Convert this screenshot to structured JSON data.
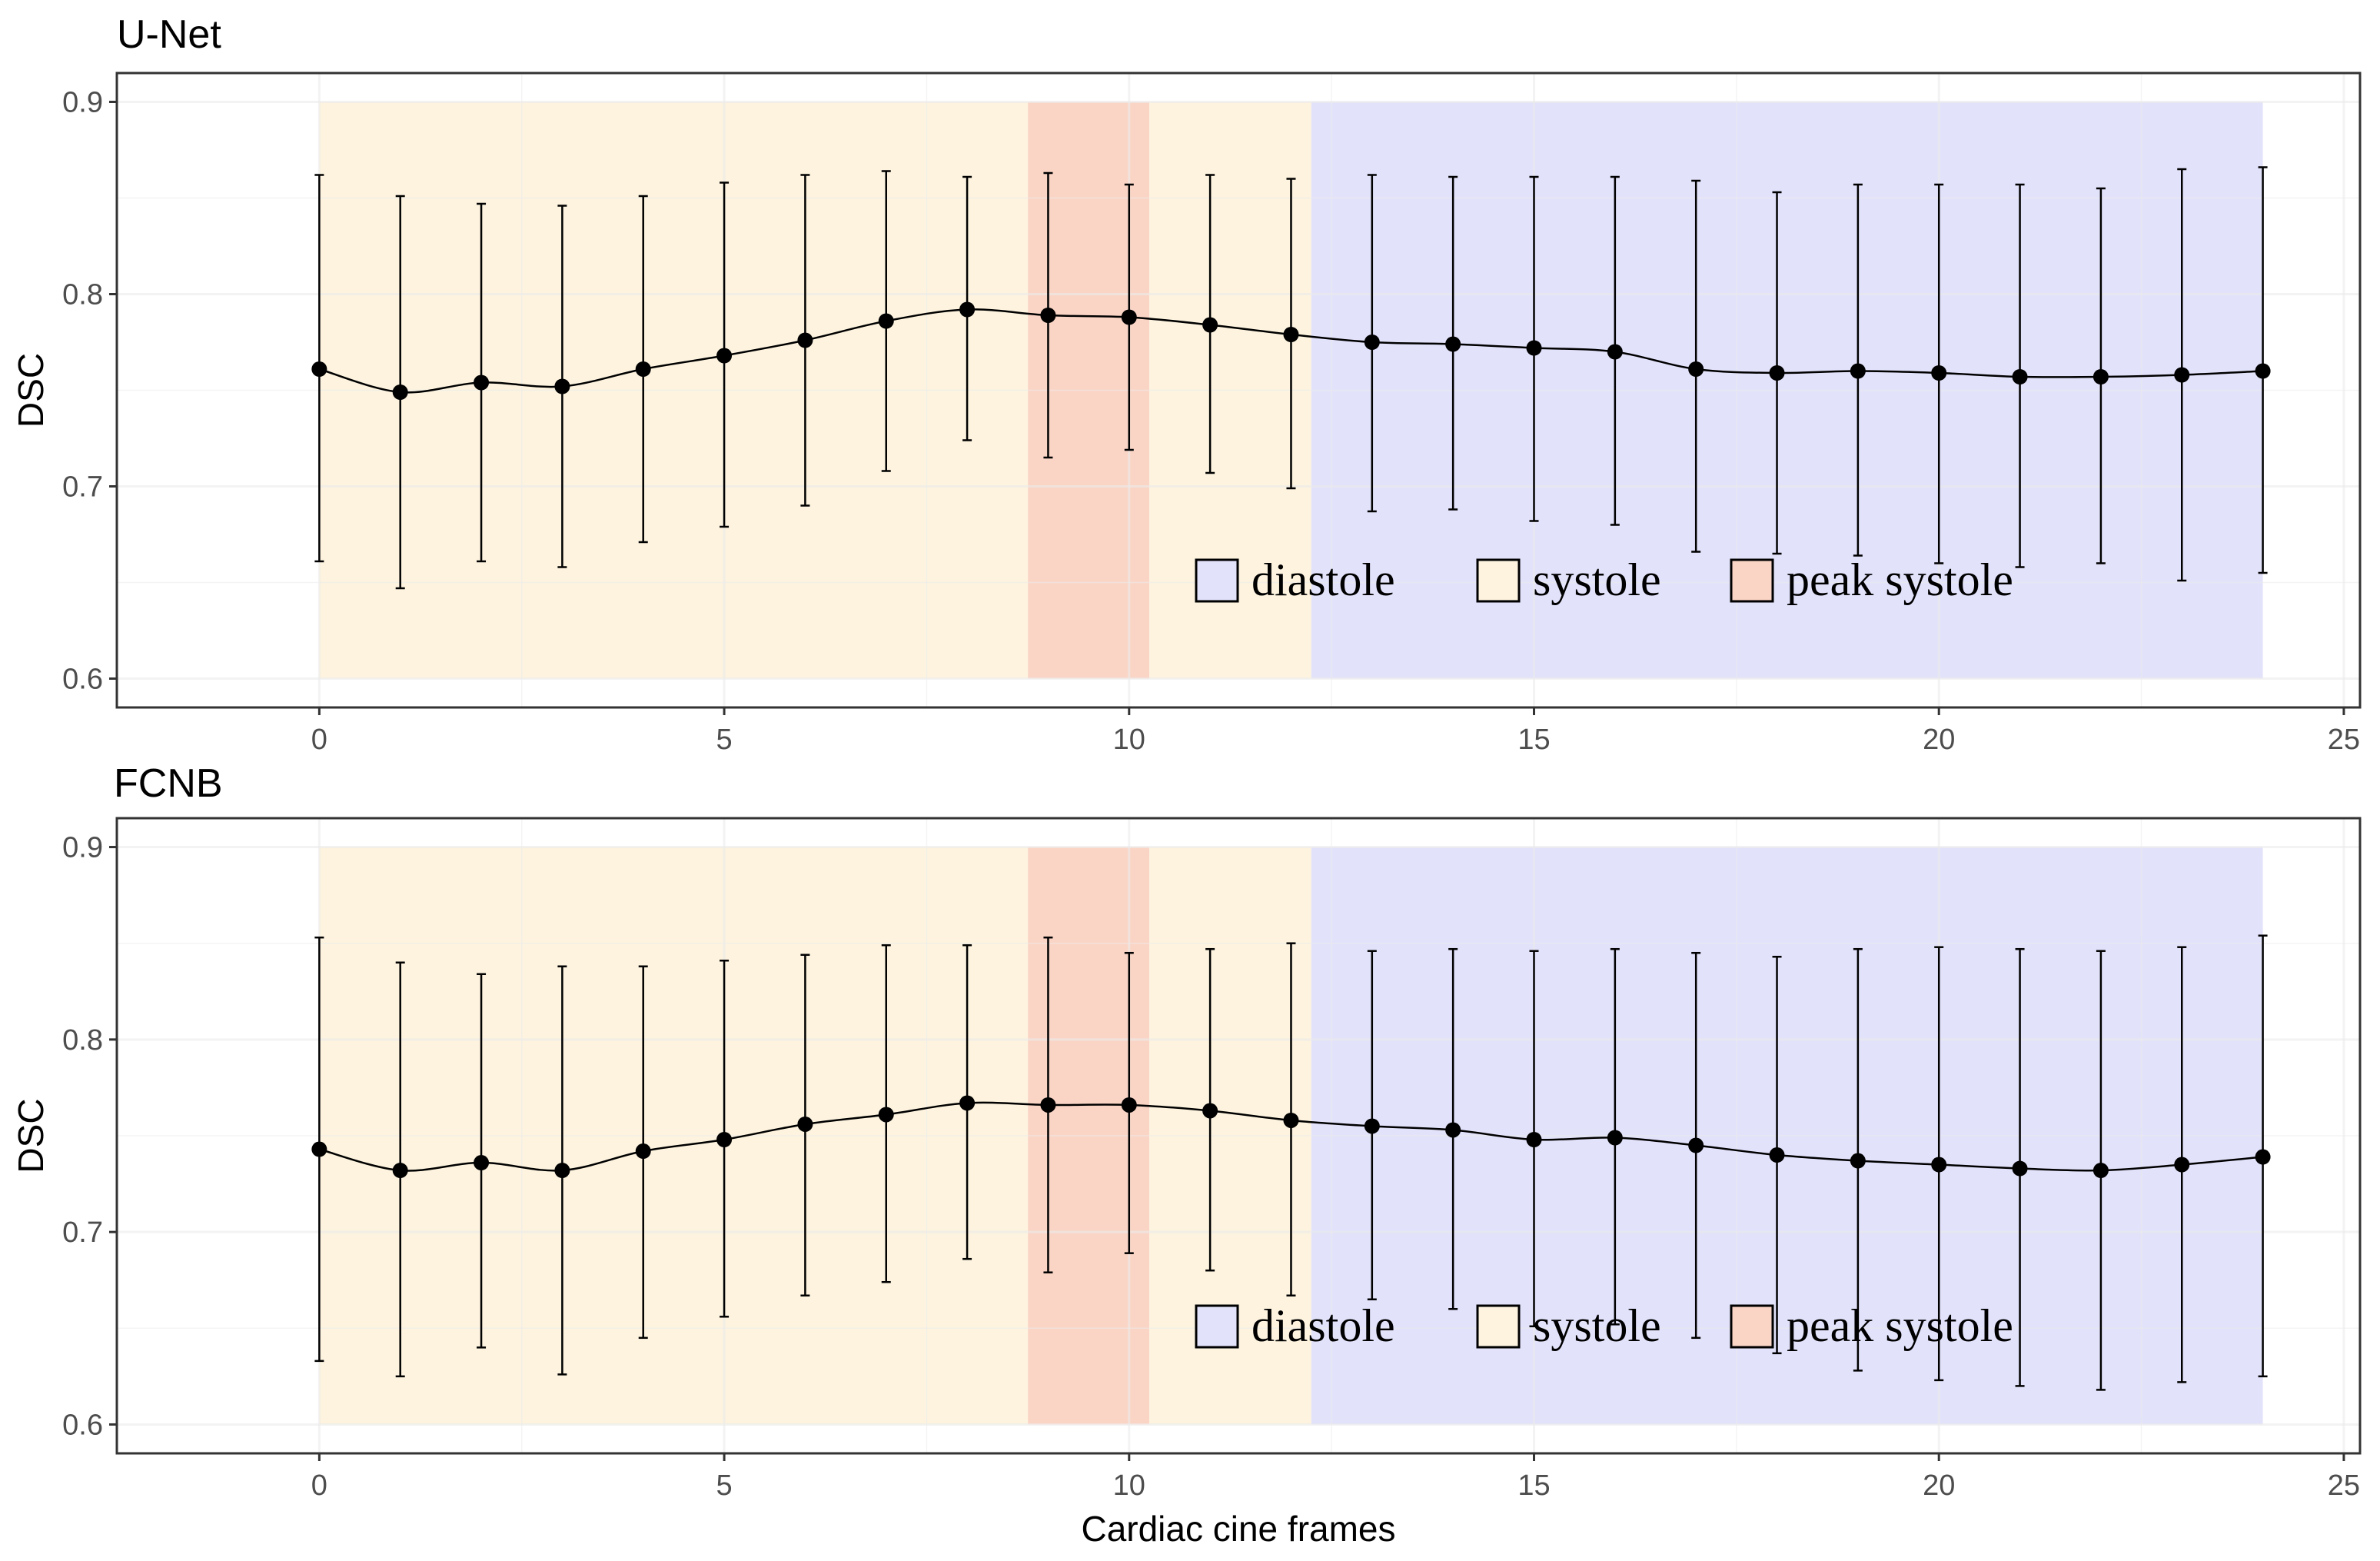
{
  "colors": {
    "diastole": "#e2e2fb",
    "systole": "#fdf3df",
    "peak_systole": "#fad5c6",
    "grid": "#ebebeb",
    "frame": "#333333",
    "line": "#000000"
  },
  "chart_data": [
    {
      "type": "line",
      "title": "U-Net",
      "xlabel": "",
      "ylabel": "DSC",
      "xlim": [
        -2.5,
        25.2
      ],
      "ylim": [
        0.585,
        0.915
      ],
      "x_ticks": [
        "0",
        "5",
        "10",
        "15",
        "20",
        "25"
      ],
      "x_tick_values": [
        0,
        5,
        10,
        15,
        20,
        25
      ],
      "y_ticks": [
        "0.6",
        "0.7",
        "0.8",
        "0.9"
      ],
      "y_tick_values": [
        0.6,
        0.7,
        0.8,
        0.9
      ],
      "grid": true,
      "phases": [
        {
          "name": "systole",
          "x_start": 0,
          "x_end": 8.75,
          "y_start": 0.6,
          "y_end": 0.9
        },
        {
          "name": "peak_systole",
          "x_start": 8.75,
          "x_end": 10.25,
          "y_start": 0.6,
          "y_end": 0.9
        },
        {
          "name": "systole",
          "x_start": 10.25,
          "x_end": 12.25,
          "y_start": 0.6,
          "y_end": 0.9
        },
        {
          "name": "diastole",
          "x_start": 12.25,
          "x_end": 24,
          "y_start": 0.6,
          "y_end": 0.9
        }
      ],
      "legend": {
        "placement": "bottom-right",
        "entries": [
          "diastole",
          "systole",
          "peak systole"
        ]
      },
      "x": [
        0,
        1,
        2,
        3,
        4,
        5,
        6,
        7,
        8,
        9,
        10,
        11,
        12,
        13,
        14,
        15,
        16,
        17,
        18,
        19,
        20,
        21,
        22,
        23,
        24
      ],
      "y": [
        0.761,
        0.749,
        0.754,
        0.752,
        0.761,
        0.768,
        0.776,
        0.786,
        0.792,
        0.789,
        0.788,
        0.784,
        0.779,
        0.775,
        0.774,
        0.772,
        0.77,
        0.761,
        0.759,
        0.76,
        0.759,
        0.757,
        0.757,
        0.758,
        0.76
      ],
      "err_lower": [
        0.661,
        0.647,
        0.661,
        0.658,
        0.671,
        0.679,
        0.69,
        0.708,
        0.724,
        0.715,
        0.719,
        0.707,
        0.699,
        0.687,
        0.688,
        0.682,
        0.68,
        0.666,
        0.665,
        0.664,
        0.66,
        0.658,
        0.66,
        0.651,
        0.655
      ],
      "err_upper": [
        0.862,
        0.851,
        0.847,
        0.846,
        0.851,
        0.858,
        0.862,
        0.864,
        0.861,
        0.863,
        0.857,
        0.862,
        0.86,
        0.862,
        0.861,
        0.861,
        0.861,
        0.859,
        0.853,
        0.857,
        0.857,
        0.857,
        0.855,
        0.865,
        0.866
      ]
    },
    {
      "type": "line",
      "title": "FCNB",
      "xlabel": "Cardiac cine frames",
      "ylabel": "DSC",
      "xlim": [
        -2.5,
        25.2
      ],
      "ylim": [
        0.585,
        0.915
      ],
      "x_ticks": [
        "0",
        "5",
        "10",
        "15",
        "20",
        "25"
      ],
      "x_tick_values": [
        0,
        5,
        10,
        15,
        20,
        25
      ],
      "y_ticks": [
        "0.6",
        "0.7",
        "0.8",
        "0.9"
      ],
      "y_tick_values": [
        0.6,
        0.7,
        0.8,
        0.9
      ],
      "grid": true,
      "phases": [
        {
          "name": "systole",
          "x_start": 0,
          "x_end": 8.75,
          "y_start": 0.6,
          "y_end": 0.9
        },
        {
          "name": "peak_systole",
          "x_start": 8.75,
          "x_end": 10.25,
          "y_start": 0.6,
          "y_end": 0.9
        },
        {
          "name": "systole",
          "x_start": 10.25,
          "x_end": 12.25,
          "y_start": 0.6,
          "y_end": 0.9
        },
        {
          "name": "diastole",
          "x_start": 12.25,
          "x_end": 24,
          "y_start": 0.6,
          "y_end": 0.9
        }
      ],
      "legend": {
        "placement": "bottom-right",
        "entries": [
          "diastole",
          "systole",
          "peak systole"
        ]
      },
      "x": [
        0,
        1,
        2,
        3,
        4,
        5,
        6,
        7,
        8,
        9,
        10,
        11,
        12,
        13,
        14,
        15,
        16,
        17,
        18,
        19,
        20,
        21,
        22,
        23,
        24
      ],
      "y": [
        0.743,
        0.732,
        0.736,
        0.732,
        0.742,
        0.748,
        0.756,
        0.761,
        0.767,
        0.766,
        0.766,
        0.763,
        0.758,
        0.755,
        0.753,
        0.748,
        0.749,
        0.745,
        0.74,
        0.737,
        0.735,
        0.733,
        0.732,
        0.735,
        0.739
      ],
      "err_lower": [
        0.633,
        0.625,
        0.64,
        0.626,
        0.645,
        0.656,
        0.667,
        0.674,
        0.686,
        0.679,
        0.689,
        0.68,
        0.667,
        0.665,
        0.66,
        0.651,
        0.652,
        0.645,
        0.637,
        0.628,
        0.623,
        0.62,
        0.618,
        0.622,
        0.625
      ],
      "err_upper": [
        0.853,
        0.84,
        0.834,
        0.838,
        0.838,
        0.841,
        0.844,
        0.849,
        0.849,
        0.853,
        0.845,
        0.847,
        0.85,
        0.846,
        0.847,
        0.846,
        0.847,
        0.845,
        0.843,
        0.847,
        0.848,
        0.847,
        0.846,
        0.848,
        0.854
      ]
    }
  ]
}
